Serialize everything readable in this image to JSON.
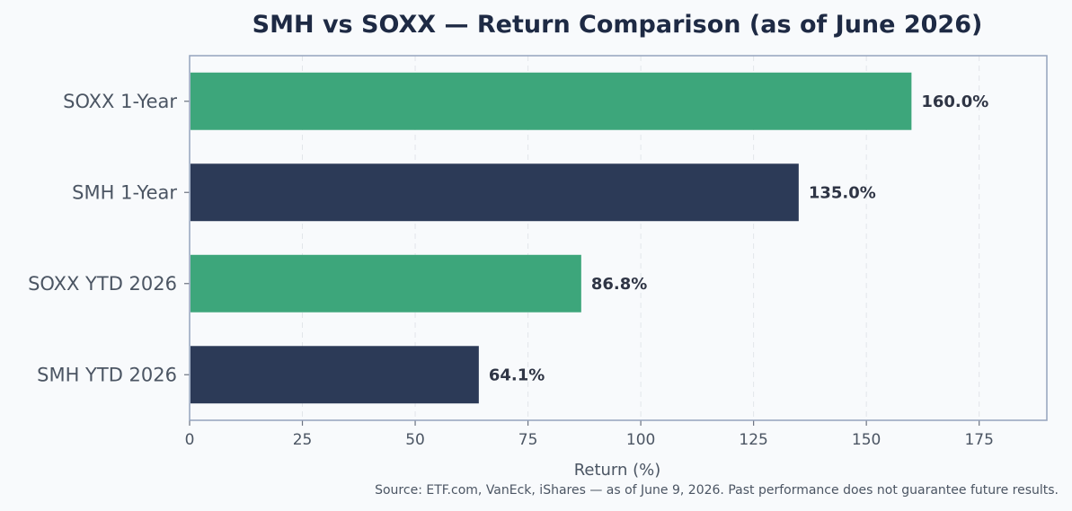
{
  "chart_data": {
    "type": "bar",
    "orientation": "horizontal",
    "title": "SMH vs SOXX — Return Comparison (as of June 2026)",
    "xlabel": "Return (%)",
    "ylabel": "",
    "xlim": [
      0,
      190
    ],
    "xticks": [
      0,
      25,
      50,
      75,
      100,
      125,
      150,
      175
    ],
    "grid": "vertical-dashed",
    "categories": [
      "SOXX 1-Year",
      "SMH 1-Year",
      "SOXX YTD 2026",
      "SMH YTD 2026"
    ],
    "values": [
      160.0,
      135.0,
      86.8,
      64.1
    ],
    "data_labels": [
      "160.0%",
      "135.0%",
      "86.8%",
      "64.1%"
    ],
    "bar_colors": [
      "#3da67b",
      "#2c3a57",
      "#3da67b",
      "#2c3a57"
    ],
    "source_note": "Source: ETF.com, VanEck, iShares — as of June 9, 2026. Past performance does not guarantee future results."
  }
}
